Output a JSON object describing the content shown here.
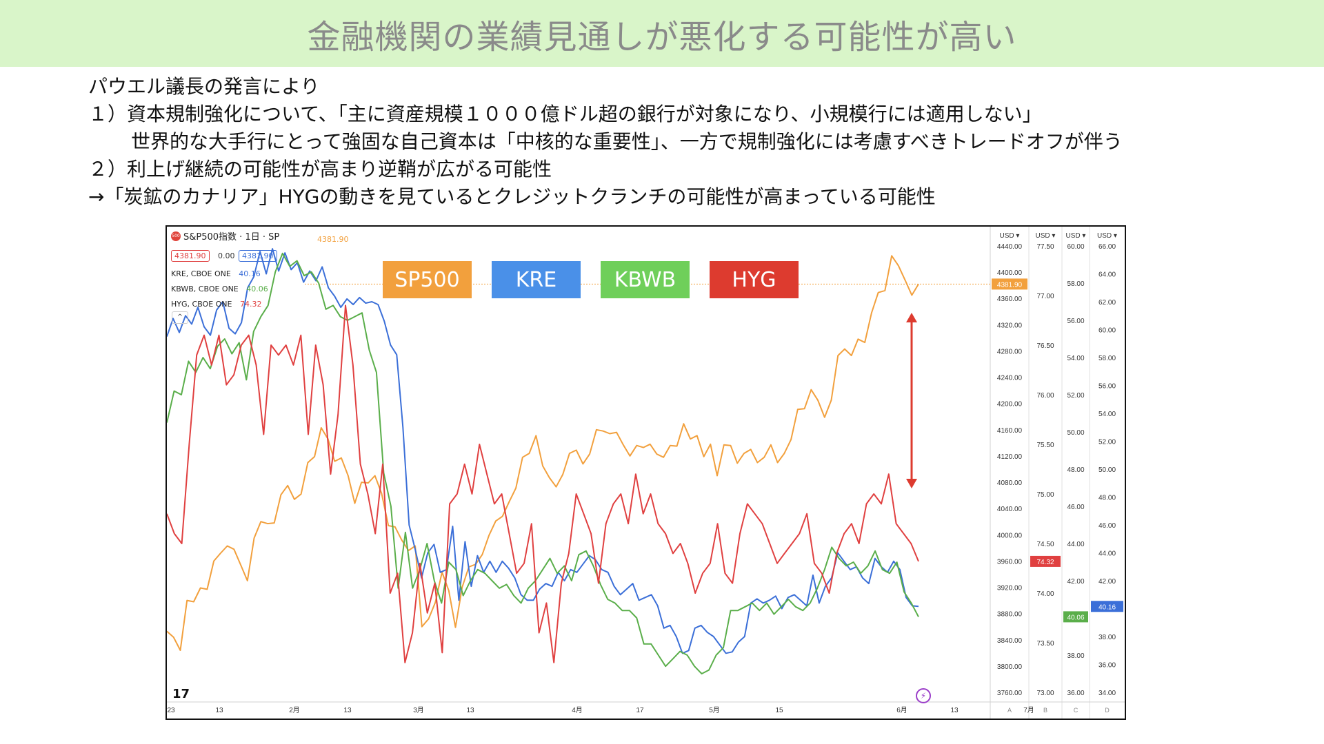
{
  "title": "金融機関の業績見通しが悪化する可能性が高い",
  "body_lines": [
    "パウエル議長の発言により",
    "１）資本規制強化について、「主に資産規模１０００億ドル超の銀行が対象になり、小規模行には適用しない」",
    "世界的な大手行にとって強固な自己資本は「中核的な重要性」、一方で規制強化には考慮すべきトレードオフが伴う",
    "２）利上げ継続の可能性が高まり逆鞘が広がる可能性",
    "→「炭鉱のカナリア」HYGの動きを見ているとクレジットクランチの可能性が高まっている可能性"
  ],
  "chart_header": {
    "symbol": "S&P500指数 · 1日 · SP",
    "badge": "500",
    "price_left": "4381.90",
    "change": "0.00",
    "price_right": "4381.90",
    "last_orange": "4381.90",
    "collapse_icon": "^"
  },
  "legend_rows": [
    {
      "label": "KRE, CBOE ONE",
      "value": "40.16",
      "color": "#3b6fd8"
    },
    {
      "label": "KBWB, CBOE ONE",
      "value": "40.06",
      "color": "#5aae4a"
    },
    {
      "label": "HYG, CBOE ONE",
      "value": "74.32",
      "color": "#e04040"
    }
  ],
  "series_tags": [
    {
      "label": "SP500",
      "color": "#f2a03d"
    },
    {
      "label": "KRE",
      "color": "#4a90e8"
    },
    {
      "label": "KBWB",
      "color": "#6fcf5a"
    },
    {
      "label": "HYG",
      "color": "#dd3b2f"
    }
  ],
  "tv_logo": "17",
  "lightning_icon": "⚡",
  "chart_data": {
    "type": "line",
    "x_ticks": [
      "23",
      "13",
      "2月",
      "13",
      "3月",
      "13",
      "4月",
      "17",
      "5月",
      "15",
      "6月",
      "13",
      "7月"
    ],
    "axes": [
      {
        "id": "A",
        "unit": "USD",
        "ticks": [
          "4440.00",
          "4400.00",
          "4360.00",
          "4320.00",
          "4280.00",
          "4240.00",
          "4200.00",
          "4160.00",
          "4120.00",
          "4080.00",
          "4040.00",
          "4000.00",
          "3960.00",
          "3920.00",
          "3880.00",
          "3840.00",
          "3800.00",
          "3760.00"
        ],
        "ylim": [
          3760,
          4440
        ],
        "marker": {
          "label": "4381.90",
          "value": 4381.9,
          "color": "#f2a03d"
        }
      },
      {
        "id": "B",
        "unit": "USD",
        "ticks": [
          "77.50",
          "77.00",
          "76.50",
          "76.00",
          "75.50",
          "75.00",
          "74.50",
          "74.00",
          "73.50",
          "73.00"
        ],
        "ylim": [
          73.0,
          77.5
        ],
        "marker": {
          "label": "74.32",
          "value": 74.32,
          "color": "#e04040"
        }
      },
      {
        "id": "C",
        "unit": "USD",
        "ticks": [
          "60.00",
          "58.00",
          "56.00",
          "54.00",
          "52.00",
          "50.00",
          "48.00",
          "46.00",
          "44.00",
          "42.00",
          "40.00",
          "38.00",
          "36.00"
        ],
        "ylim": [
          36,
          60
        ],
        "marker": {
          "label": "40.06",
          "value": 40.06,
          "color": "#5aae4a"
        }
      },
      {
        "id": "D",
        "unit": "USD",
        "ticks": [
          "66.00",
          "64.00",
          "62.00",
          "60.00",
          "58.00",
          "56.00",
          "54.00",
          "52.00",
          "50.00",
          "48.00",
          "46.00",
          "44.00",
          "42.00",
          "40.00",
          "38.00",
          "36.00",
          "34.00"
        ],
        "ylim": [
          34,
          66
        ],
        "marker": {
          "label": "40.16",
          "value": 40.16,
          "color": "#3b6fd8"
        }
      }
    ],
    "series": [
      {
        "name": "SP500",
        "color": "#f2a03d",
        "axis": "A",
        "values": [
          3853,
          3844,
          3824,
          3900,
          3898,
          3919,
          3917,
          3960,
          3972,
          3983,
          3978,
          3954,
          3930,
          3995,
          4020,
          4017,
          4018,
          4061,
          4075,
          4054,
          4062,
          4110,
          4119,
          4163,
          4146,
          4112,
          4117,
          4090,
          4048,
          4080,
          4079,
          4090,
          4063,
          4014,
          4012,
          3992,
          3976,
          3983,
          3860,
          3872,
          3897,
          3943,
          3915,
          3859,
          3920,
          3951,
          3955,
          3970,
          3999,
          4021,
          4028,
          4050,
          4071,
          4118,
          4124,
          4151,
          4105,
          4087,
          4073,
          4092,
          4124,
          4129,
          4108,
          4123,
          4160,
          4158,
          4154,
          4156,
          4137,
          4120,
          4136,
          4133,
          4138,
          4123,
          4118,
          4136,
          4135,
          4169,
          4146,
          4151,
          4119,
          4138,
          4090,
          4137,
          4136,
          4109,
          4124,
          4130,
          4110,
          4118,
          4137,
          4110,
          4124,
          4145,
          4191,
          4192,
          4221,
          4205,
          4179,
          4205,
          4273,
          4283,
          4273,
          4298,
          4293,
          4338,
          4369,
          4372,
          4425,
          4410,
          4388,
          4365,
          4381.9
        ]
      },
      {
        "name": "KRE",
        "color": "#3b6fd8",
        "axis": "D",
        "values": [
          59.5,
          60.8,
          59.8,
          61.0,
          60.4,
          61.6,
          60.2,
          59.6,
          61.4,
          62.0,
          60.1,
          59.7,
          60.5,
          63.0,
          63.8,
          65.6,
          64.0,
          65.8,
          64.2,
          65.5,
          64.3,
          64.8,
          63.4,
          64.2,
          63.5,
          64.5,
          63.0,
          62.4,
          61.6,
          62.2,
          61.8,
          62.3,
          61.9,
          62.0,
          61.8,
          60.6,
          58.9,
          58.2,
          53.0,
          46.0,
          44.2,
          42.2,
          44.0,
          44.6,
          42.6,
          42.8,
          45.9,
          40.6,
          44.8,
          41.6,
          43.8,
          42.6,
          43.4,
          42.6,
          43.4,
          42.9,
          42.2,
          41.0,
          40.6,
          40.6,
          41.4,
          41.8,
          41.6,
          42.6,
          42.0,
          42.8,
          42.6,
          43.2,
          43.8,
          43.5,
          42.8,
          42.6,
          41.6,
          41.0,
          41.4,
          41.8,
          40.6,
          40.8,
          41.0,
          40.2,
          38.6,
          38.8,
          38.0,
          36.8,
          37.0,
          38.6,
          38.8,
          38.3,
          38.0,
          37.4,
          36.8,
          36.9,
          37.6,
          38.0,
          40.4,
          40.7,
          40.4,
          40.6,
          40.9,
          40.0,
          40.8,
          41.0,
          40.6,
          40.2,
          42.4,
          40.4,
          41.6,
          42.2,
          44.0,
          43.4,
          42.8,
          43.0,
          42.2,
          41.8,
          43.6,
          43.0,
          42.6,
          43.4,
          42.8,
          40.8,
          40.2,
          40.16
        ]
      },
      {
        "name": "KBWB",
        "color": "#5aae4a",
        "axis": "C",
        "values": [
          50.5,
          52.2,
          52.0,
          53.8,
          53.2,
          54.0,
          53.4,
          54.6,
          55.0,
          54.2,
          54.8,
          52.8,
          55.4,
          56.2,
          56.8,
          58.6,
          59.6,
          58.9,
          59.2,
          58.4,
          58.6,
          58.0,
          56.6,
          56.8,
          56.2,
          56.0,
          56.2,
          56.4,
          54.4,
          53.2,
          47.8,
          46.0,
          41.6,
          44.6,
          41.6,
          42.6,
          44.0,
          42.0,
          40.8,
          43.0,
          42.6,
          41.2,
          42.0,
          42.6,
          42.4,
          42.0,
          41.6,
          41.8,
          41.2,
          40.8,
          41.6,
          42.0,
          42.6,
          43.2,
          42.4,
          42.8,
          42.0,
          43.4,
          43.6,
          42.8,
          41.8,
          41.0,
          40.8,
          40.4,
          40.4,
          40.0,
          38.6,
          38.6,
          38.0,
          37.4,
          37.8,
          38.2,
          38.0,
          37.4,
          37.0,
          37.2,
          38.0,
          38.4,
          40.4,
          40.4,
          40.6,
          40.8,
          40.4,
          40.8,
          40.2,
          40.6,
          41.0,
          40.6,
          40.4,
          40.8,
          41.6,
          42.6,
          43.8,
          43.2,
          42.8,
          43.0,
          42.4,
          42.8,
          43.6,
          42.6,
          42.4,
          43.0,
          41.4,
          40.8,
          40.06
        ]
      },
      {
        "name": "HYG",
        "color": "#e04040",
        "axis": "B",
        "values": [
          74.8,
          74.6,
          74.5,
          75.5,
          76.4,
          76.6,
          76.3,
          76.6,
          76.1,
          76.2,
          76.5,
          76.6,
          76.3,
          75.6,
          76.5,
          76.4,
          76.5,
          76.3,
          76.6,
          75.6,
          76.5,
          76.1,
          75.2,
          75.8,
          76.9,
          76.3,
          75.3,
          75.0,
          74.6,
          75.3,
          74.0,
          74.2,
          73.3,
          73.6,
          74.3,
          73.8,
          74.1,
          73.4,
          74.9,
          75.0,
          75.3,
          75.0,
          75.5,
          75.2,
          74.9,
          75.0,
          74.6,
          74.2,
          74.3,
          74.7,
          73.6,
          73.9,
          73.3,
          74.1,
          74.4,
          75.0,
          74.8,
          74.6,
          74.1,
          74.7,
          74.9,
          75.0,
          74.7,
          75.2,
          74.8,
          75.0,
          74.7,
          74.6,
          74.4,
          74.5,
          74.3,
          74.0,
          74.2,
          74.3,
          74.7,
          74.2,
          74.1,
          74.6,
          74.9,
          74.8,
          74.7,
          74.5,
          74.3,
          74.4,
          74.5,
          74.6,
          74.8,
          74.3,
          74.2,
          74.0,
          74.4,
          74.6,
          74.7,
          74.5,
          74.9,
          75.0,
          74.9,
          75.2,
          74.7,
          74.6,
          74.5,
          74.32
        ]
      }
    ]
  }
}
